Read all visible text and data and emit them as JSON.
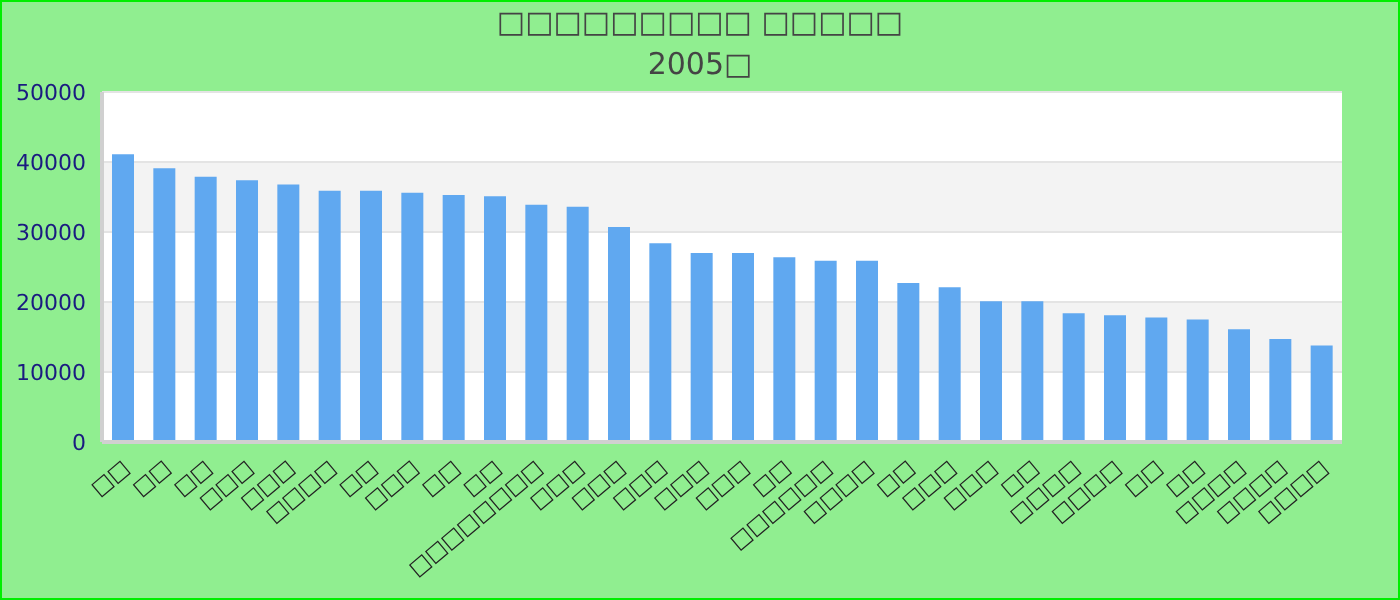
{
  "chart_data": {
    "type": "bar",
    "title": "□□□□□□□□□ □□□□□",
    "subtitle": "2005□",
    "categories": [
      "□□",
      "□□",
      "□□",
      "□□□",
      "□□□",
      "□□□□",
      "□□",
      "□□□",
      "□□",
      "□□",
      "□□□□□□□□",
      "□□□",
      "□□□",
      "□□□",
      "□□□",
      "□□□",
      "□□",
      "□□□□□□",
      "□□□□",
      "□□",
      "□□□",
      "□□□",
      "□□",
      "□□□□",
      "□□□□",
      "□□",
      "□□",
      "□□□□",
      "□□□□",
      "□□□□"
    ],
    "values": [
      41100,
      39100,
      37900,
      37400,
      36800,
      35900,
      35900,
      35600,
      35300,
      35100,
      33900,
      33600,
      30700,
      28400,
      27000,
      27000,
      26400,
      25900,
      25900,
      22700,
      22100,
      20100,
      20100,
      18400,
      18100,
      17800,
      17500,
      16100,
      14700,
      13800
    ],
    "color": "#60a8f0",
    "ylim": [
      0,
      50000
    ],
    "yticks": [
      0,
      10000,
      20000,
      30000,
      40000,
      50000
    ],
    "grid": "y"
  }
}
